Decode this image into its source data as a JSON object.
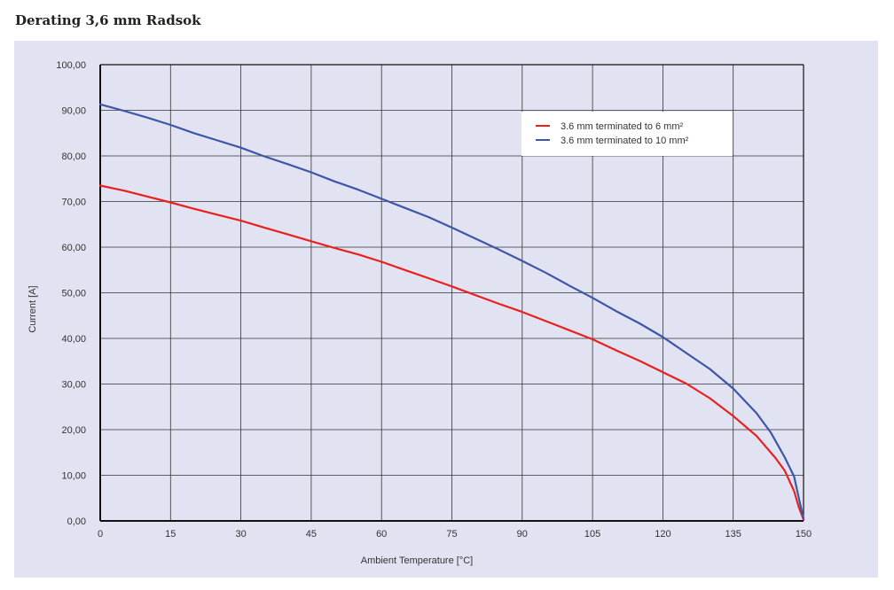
{
  "page": {
    "title": "Derating 3,6 mm Radsok"
  },
  "chart_data": {
    "type": "line",
    "title": "Derating 3,6 mm Radsok",
    "xlabel": "Ambient Temperature [°C]",
    "ylabel": "Current [A]",
    "xlim": [
      0,
      150
    ],
    "ylim": [
      0,
      100
    ],
    "xticks": [
      0,
      15,
      30,
      45,
      60,
      75,
      90,
      105,
      120,
      135,
      150
    ],
    "yticks": [
      0,
      10,
      20,
      30,
      40,
      50,
      60,
      70,
      80,
      90,
      100
    ],
    "xtick_labels": [
      "0",
      "15",
      "30",
      "45",
      "60",
      "75",
      "90",
      "105",
      "120",
      "135",
      "150"
    ],
    "ytick_labels": [
      "0,00",
      "10,00",
      "20,00",
      "30,00",
      "40,00",
      "50,00",
      "60,00",
      "70,00",
      "80,00",
      "90,00",
      "100,00"
    ],
    "grid": true,
    "legend_position": "top-right",
    "series": [
      {
        "name": "3.6 mm terminated to 6 mm²",
        "color": "#e8201e",
        "x": [
          0,
          5,
          10,
          15,
          20,
          25,
          30,
          35,
          40,
          45,
          50,
          55,
          60,
          65,
          70,
          75,
          80,
          85,
          90,
          95,
          100,
          105,
          110,
          115,
          120,
          125,
          130,
          135,
          140,
          144,
          146,
          148,
          149,
          150
        ],
        "y": [
          73.5,
          72.4,
          71.1,
          69.8,
          68.4,
          67.1,
          65.8,
          64.3,
          62.8,
          61.3,
          59.8,
          58.4,
          56.8,
          55.0,
          53.2,
          51.4,
          49.5,
          47.6,
          45.8,
          43.8,
          41.8,
          39.8,
          37.4,
          35.1,
          32.6,
          30.1,
          26.9,
          23.0,
          18.6,
          13.8,
          11.0,
          6.5,
          3.0,
          0.3
        ]
      },
      {
        "name": "3.6 mm terminated to 10 mm²",
        "color": "#3d56a8",
        "x": [
          0,
          5,
          10,
          15,
          20,
          25,
          30,
          35,
          40,
          45,
          50,
          55,
          60,
          65,
          70,
          75,
          80,
          85,
          90,
          95,
          100,
          105,
          110,
          115,
          120,
          125,
          130,
          135,
          140,
          143,
          146,
          148,
          149,
          150
        ],
        "y": [
          91.3,
          89.9,
          88.4,
          86.8,
          85.0,
          83.4,
          81.8,
          79.9,
          78.2,
          76.4,
          74.4,
          72.6,
          70.6,
          68.6,
          66.6,
          64.3,
          61.9,
          59.5,
          57.0,
          54.4,
          51.6,
          48.9,
          46.0,
          43.3,
          40.3,
          36.8,
          33.3,
          29.0,
          23.6,
          19.4,
          13.9,
          9.7,
          5.0,
          0.5
        ]
      }
    ]
  }
}
